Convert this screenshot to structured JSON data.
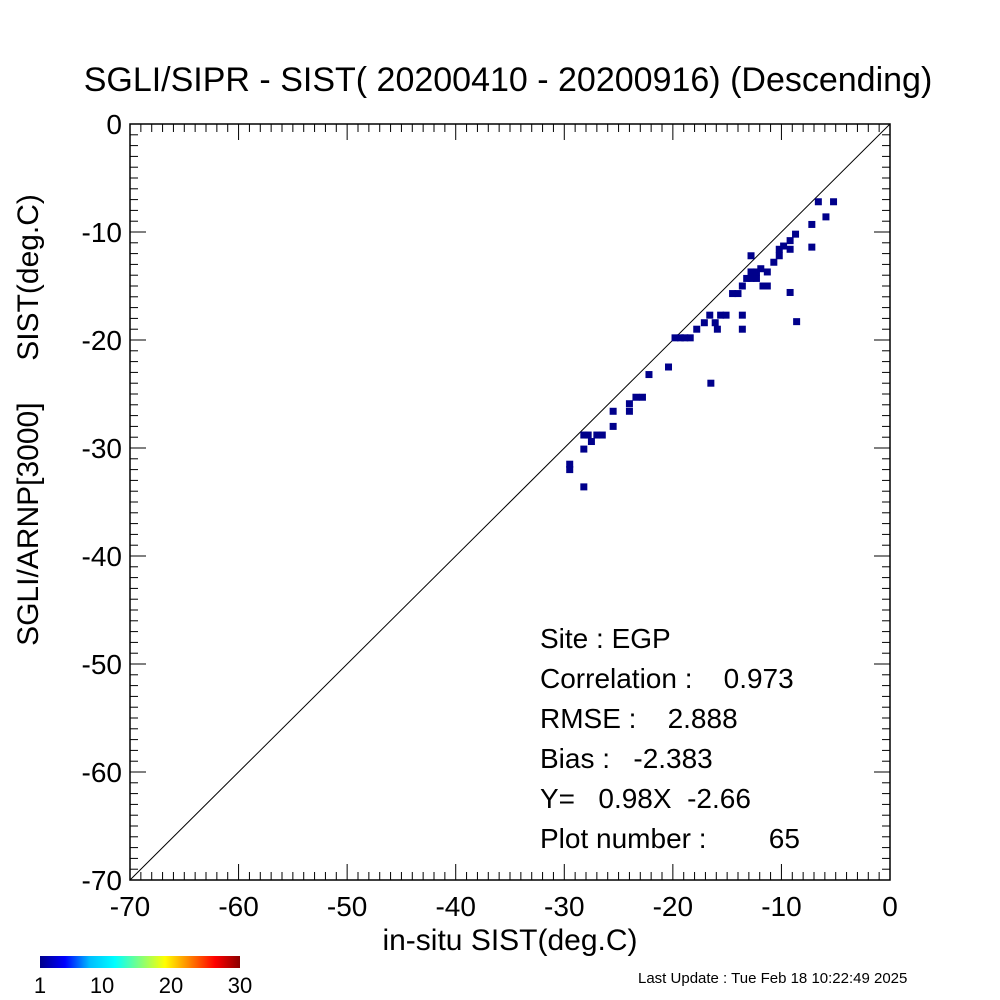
{
  "chart_data": {
    "type": "scatter",
    "title": "SGLI/SIPR - SIST( 20200410 - 20200916) (Descending)",
    "xlabel": "in-situ SIST(deg.C)",
    "ylabel": "SGLI/ARNP[3000]     SIST(deg.C)",
    "xlim": [
      -70,
      0
    ],
    "ylim": [
      -70,
      0
    ],
    "xticks": [
      -70,
      -60,
      -50,
      -40,
      -30,
      -20,
      -10,
      0
    ],
    "yticks": [
      -70,
      -60,
      -50,
      -40,
      -30,
      -20,
      -10,
      0
    ],
    "xtick_labels": [
      "-70",
      "-60",
      "-50",
      "-40",
      "-30",
      "-20",
      "-10",
      "0"
    ],
    "ytick_labels": [
      "-70",
      "-60",
      "-50",
      "-40",
      "-30",
      "-20",
      "-10",
      "0"
    ],
    "reference_line": "y = x",
    "point_color": "#00008b",
    "points": [
      [
        -29.5,
        -31.5
      ],
      [
        -29.5,
        -32.0
      ],
      [
        -28.2,
        -28.8
      ],
      [
        -28.2,
        -30.1
      ],
      [
        -28.2,
        -33.6
      ],
      [
        -27.8,
        -28.8
      ],
      [
        -27.5,
        -29.4
      ],
      [
        -27.0,
        -28.8
      ],
      [
        -26.5,
        -28.8
      ],
      [
        -25.5,
        -26.6
      ],
      [
        -25.5,
        -28.0
      ],
      [
        -24.0,
        -25.9
      ],
      [
        -24.0,
        -26.6
      ],
      [
        -23.4,
        -25.3
      ],
      [
        -22.8,
        -25.3
      ],
      [
        -22.2,
        -23.2
      ],
      [
        -20.4,
        -22.5
      ],
      [
        -19.8,
        -19.8
      ],
      [
        -19.3,
        -19.8
      ],
      [
        -18.9,
        -19.8
      ],
      [
        -18.4,
        -19.8
      ],
      [
        -17.8,
        -19.0
      ],
      [
        -17.1,
        -18.4
      ],
      [
        -16.6,
        -17.7
      ],
      [
        -16.5,
        -24.0
      ],
      [
        -16.1,
        -18.4
      ],
      [
        -15.9,
        -19.0
      ],
      [
        -15.6,
        -17.7
      ],
      [
        -15.1,
        -17.7
      ],
      [
        -14.5,
        -15.7
      ],
      [
        -14.0,
        -15.7
      ],
      [
        -13.6,
        -17.7
      ],
      [
        -13.6,
        -19.0
      ],
      [
        -13.6,
        -15.0
      ],
      [
        -13.2,
        -14.3
      ],
      [
        -12.8,
        -12.2
      ],
      [
        -12.8,
        -13.7
      ],
      [
        -12.8,
        -14.3
      ],
      [
        -12.3,
        -14.3
      ],
      [
        -12.3,
        -13.7
      ],
      [
        -11.9,
        -13.4
      ],
      [
        -11.7,
        -15.0
      ],
      [
        -11.3,
        -13.7
      ],
      [
        -11.3,
        -15.0
      ],
      [
        -10.7,
        -12.8
      ],
      [
        -10.2,
        -12.2
      ],
      [
        -10.2,
        -11.6
      ],
      [
        -9.8,
        -11.3
      ],
      [
        -9.2,
        -10.8
      ],
      [
        -9.2,
        -11.6
      ],
      [
        -9.2,
        -15.6
      ],
      [
        -8.7,
        -10.2
      ],
      [
        -8.6,
        -18.3
      ],
      [
        -7.2,
        -9.3
      ],
      [
        -7.2,
        -11.4
      ],
      [
        -6.6,
        -7.2
      ],
      [
        -5.9,
        -8.6
      ],
      [
        -5.2,
        -7.2
      ]
    ],
    "stats": {
      "site": "Site : EGP",
      "correlation": "Correlation :    0.973",
      "rmse": "RMSE :    2.888",
      "bias": "Bias :   -2.383",
      "fit": "Y=   0.98X  -2.66",
      "plot_number": "Plot number :        65"
    },
    "colorbar": {
      "labels": [
        "1",
        "10",
        "20",
        "30"
      ],
      "values": [
        1,
        10,
        20,
        30
      ],
      "colors": [
        "#00008b",
        "#0000ff",
        "#00bfff",
        "#00ffff",
        "#7fff7f",
        "#ffff00",
        "#ff8000",
        "#ff0000",
        "#8b0000"
      ]
    },
    "last_update": "Last Update : Tue Feb 18 10:22:49 2025"
  }
}
